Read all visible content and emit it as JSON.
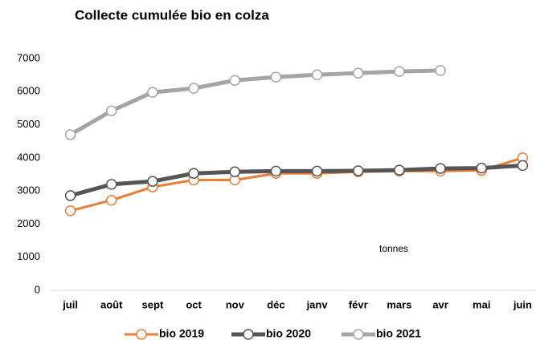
{
  "chart_data": {
    "type": "line",
    "title": "Collecte cumulée bio en colza",
    "categories": [
      "juil",
      "août",
      "sept",
      "oct",
      "nov",
      "déc",
      "janv",
      "févr",
      "mars",
      "avr",
      "mai",
      "juin"
    ],
    "series": [
      {
        "name": "bio 2019",
        "color": "#ed7d31",
        "values": [
          2400,
          2720,
          3120,
          3330,
          3330,
          3530,
          3530,
          3580,
          3600,
          3600,
          3620,
          4000
        ]
      },
      {
        "name": "bio 2020",
        "color": "#555555",
        "values": [
          2860,
          3200,
          3290,
          3530,
          3580,
          3600,
          3600,
          3610,
          3630,
          3680,
          3690,
          3770
        ]
      },
      {
        "name": "bio 2021",
        "color": "#a5a5a5",
        "values": [
          4700,
          5420,
          5980,
          6100,
          6340,
          6440,
          6510,
          6560,
          6610,
          6640,
          null,
          null
        ]
      }
    ],
    "annotation": "tonnes",
    "ylim": [
      0,
      7000
    ],
    "yticks": [
      0,
      1000,
      2000,
      3000,
      4000,
      5000,
      6000,
      7000
    ],
    "grid": false,
    "legend": "bottom"
  }
}
